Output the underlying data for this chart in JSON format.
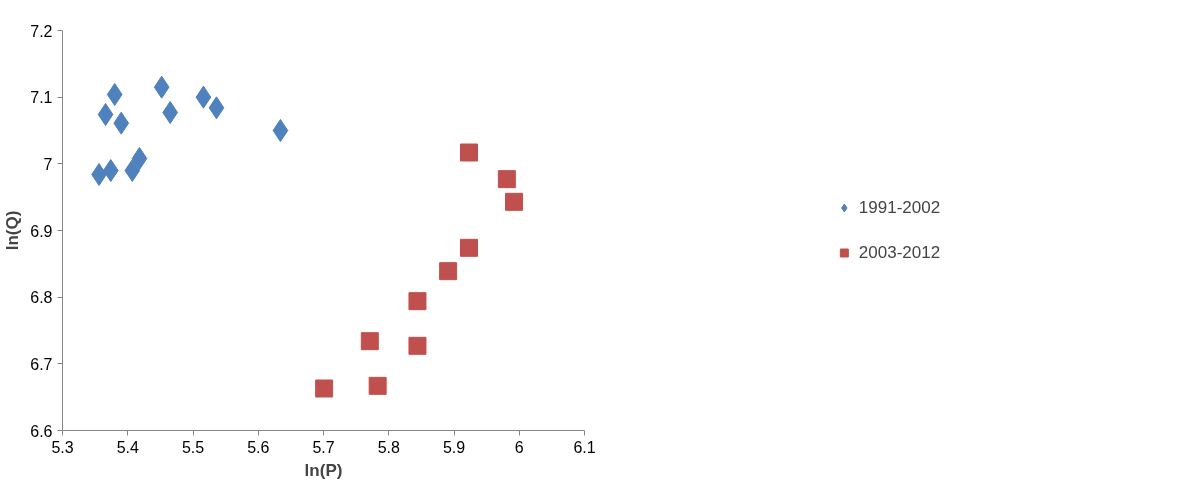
{
  "chart_data": {
    "type": "scatter",
    "xlabel": "ln(P)",
    "ylabel": "ln(Q)",
    "xlim": [
      5.3,
      6.1
    ],
    "xticks": [
      5.3,
      5.4,
      5.5,
      5.6,
      5.7,
      5.8,
      5.9,
      6,
      6.1
    ],
    "ylim": [
      6.6,
      7.2
    ],
    "yticks": [
      6.6,
      6.7,
      6.8,
      6.9,
      7,
      7.1,
      7.2
    ],
    "grid": false,
    "legend": "right",
    "series": [
      {
        "name": "1991-2002",
        "color": "#4f81bd",
        "marker": "diamond",
        "x": [
          5.356,
          5.366,
          5.374,
          5.38,
          5.39,
          5.407,
          5.418,
          5.452,
          5.465,
          5.516,
          5.536,
          5.634
        ],
        "values": [
          6.984,
          7.074,
          6.99,
          7.104,
          7.061,
          6.99,
          7.008,
          7.115,
          7.077,
          7.1,
          7.084,
          7.05
        ]
      },
      {
        "name": "2003-2012",
        "color": "#c0504d",
        "marker": "square",
        "x": [
          5.701,
          5.771,
          5.783,
          5.844,
          5.844,
          5.891,
          5.923,
          5.923,
          5.981,
          5.992
        ],
        "values": [
          6.663,
          6.734,
          6.667,
          6.794,
          6.727,
          6.839,
          6.874,
          7.017,
          6.977,
          6.943
        ]
      }
    ]
  }
}
